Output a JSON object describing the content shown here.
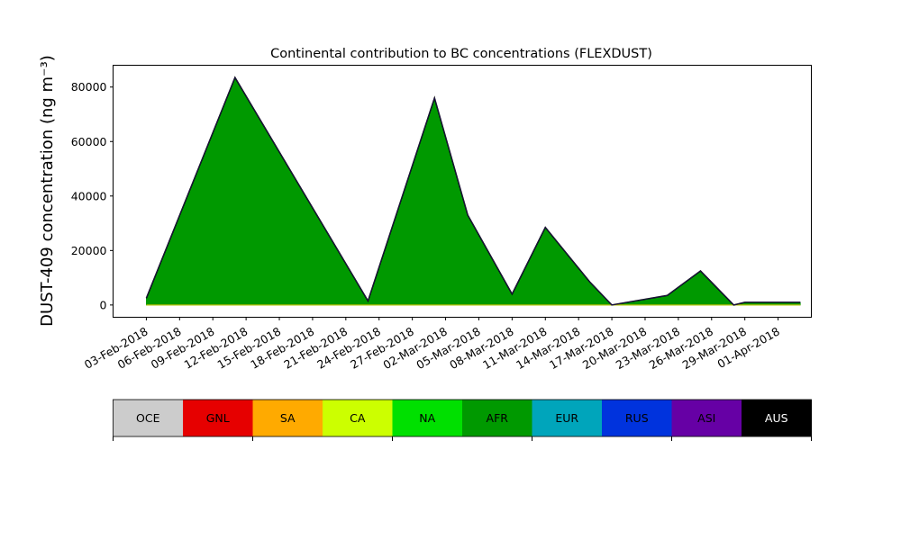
{
  "chart_data": {
    "type": "area",
    "title": "Continental contribution to BC concentrations (FLEXDUST)",
    "ylabel": "DUST-409 concentration (ng m⁻³)",
    "xlabel": "",
    "ylim": [
      -4500,
      88000
    ],
    "xlim": [
      "2018-01-31",
      "2018-04-04"
    ],
    "yticks": [
      0,
      20000,
      40000,
      60000,
      80000
    ],
    "ytick_labels": [
      "0",
      "20000",
      "40000",
      "60000",
      "80000"
    ],
    "xticks": [
      "2018-02-03",
      "2018-02-06",
      "2018-02-09",
      "2018-02-12",
      "2018-02-15",
      "2018-02-18",
      "2018-02-21",
      "2018-02-24",
      "2018-02-27",
      "2018-03-02",
      "2018-03-05",
      "2018-03-08",
      "2018-03-11",
      "2018-03-14",
      "2018-03-17",
      "2018-03-20",
      "2018-03-23",
      "2018-03-26",
      "2018-03-29",
      "2018-04-01"
    ],
    "xtick_labels": [
      "03-Feb-2018",
      "06-Feb-2018",
      "09-Feb-2018",
      "12-Feb-2018",
      "15-Feb-2018",
      "18-Feb-2018",
      "21-Feb-2018",
      "24-Feb-2018",
      "27-Feb-2018",
      "02-Mar-2018",
      "05-Mar-2018",
      "08-Mar-2018",
      "11-Mar-2018",
      "14-Mar-2018",
      "17-Mar-2018",
      "20-Mar-2018",
      "23-Mar-2018",
      "26-Mar-2018",
      "29-Mar-2018",
      "01-Apr-2018"
    ],
    "x": [
      "2018-02-03",
      "2018-02-11",
      "2018-02-23",
      "2018-03-01",
      "2018-03-04",
      "2018-03-08",
      "2018-03-11",
      "2018-03-15",
      "2018-03-17",
      "2018-03-22",
      "2018-03-25",
      "2018-03-28",
      "2018-03-29",
      "2018-04-03"
    ],
    "series": [
      {
        "name": "OCE",
        "color": "#cccccc",
        "values": [
          0,
          0,
          0,
          0,
          0,
          0,
          0,
          0,
          0,
          0,
          0,
          0,
          0,
          0
        ]
      },
      {
        "name": "GNL",
        "color": "#e60000",
        "values": [
          0,
          0,
          0,
          0,
          0,
          0,
          0,
          0,
          0,
          0,
          0,
          0,
          0,
          0
        ]
      },
      {
        "name": "SA",
        "color": "#ffaa00",
        "values": [
          0,
          0,
          0,
          0,
          0,
          0,
          0,
          0,
          0,
          0,
          0,
          0,
          0,
          0
        ]
      },
      {
        "name": "CA",
        "color": "#ccff00",
        "values": [
          0,
          0,
          0,
          0,
          0,
          0,
          0,
          0,
          0,
          0,
          0,
          0,
          0,
          0
        ]
      },
      {
        "name": "NA",
        "color": "#00e000",
        "values": [
          0,
          0,
          0,
          0,
          0,
          0,
          0,
          0,
          0,
          0,
          0,
          0,
          0,
          0
        ]
      },
      {
        "name": "AFR",
        "color": "#009900",
        "values": [
          2500,
          83500,
          1500,
          76000,
          33000,
          4000,
          28500,
          8500,
          0,
          3500,
          12500,
          0,
          1000,
          1000
        ]
      },
      {
        "name": "EUR",
        "color": "#00a5bb",
        "values": [
          0,
          0,
          0,
          0,
          0,
          0,
          0,
          0,
          0,
          0,
          0,
          0,
          0,
          0
        ]
      },
      {
        "name": "RUS",
        "color": "#0033dd",
        "values": [
          0,
          0,
          0,
          0,
          0,
          0,
          0,
          0,
          0,
          0,
          0,
          0,
          0,
          0
        ]
      },
      {
        "name": "ASI",
        "color": "#6600a5",
        "values": [
          0,
          0,
          0,
          0,
          0,
          0,
          0,
          0,
          0,
          0,
          0,
          0,
          0,
          0
        ]
      },
      {
        "name": "AUS",
        "color": "#000000",
        "values": [
          0,
          0,
          0,
          0,
          0,
          0,
          0,
          0,
          0,
          0,
          0,
          0,
          0,
          0
        ]
      }
    ],
    "legend": {
      "placement": "bottom",
      "entries": [
        {
          "label": "OCE",
          "color": "#cccccc",
          "text_color": "#000000"
        },
        {
          "label": "GNL",
          "color": "#e60000",
          "text_color": "#000000"
        },
        {
          "label": "SA",
          "color": "#ffaa00",
          "text_color": "#000000"
        },
        {
          "label": "CA",
          "color": "#ccff00",
          "text_color": "#000000"
        },
        {
          "label": "NA",
          "color": "#00e000",
          "text_color": "#000000"
        },
        {
          "label": "AFR",
          "color": "#009900",
          "text_color": "#000000"
        },
        {
          "label": "EUR",
          "color": "#00a5bb",
          "text_color": "#000000"
        },
        {
          "label": "RUS",
          "color": "#0033dd",
          "text_color": "#000000"
        },
        {
          "label": "ASI",
          "color": "#6600a5",
          "text_color": "#000000"
        },
        {
          "label": "AUS",
          "color": "#000000",
          "text_color": "#ffffff"
        }
      ]
    },
    "grid": false
  }
}
